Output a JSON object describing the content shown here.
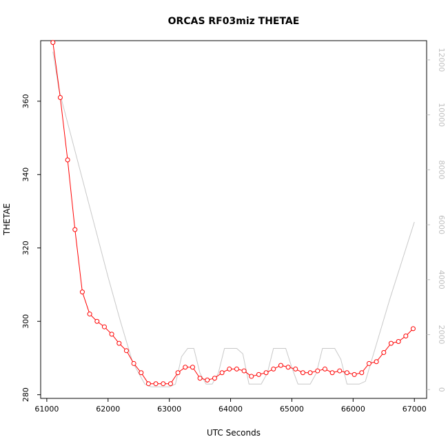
{
  "chart_data": {
    "type": "line",
    "title": "ORCAS RF03miz THETAE",
    "xlabel": "UTC Seconds",
    "ylabel": "THETAE",
    "xlim": [
      60900,
      67200
    ],
    "ylim": [
      279,
      376.5
    ],
    "y2lim": [
      -320,
      12700
    ],
    "x_ticks": [
      61000,
      62000,
      63000,
      64000,
      65000,
      66000,
      67000
    ],
    "x_tick_labels": [
      "61000",
      "62000",
      "63000",
      "64000",
      "65000",
      "66000",
      "67000"
    ],
    "y_ticks": [
      280,
      300,
      320,
      340,
      360
    ],
    "y_tick_labels": [
      "280",
      "300",
      "320",
      "340",
      "360"
    ],
    "y2_ticks": [
      0,
      2000,
      4000,
      6000,
      8000,
      10000,
      12000
    ],
    "y2_tick_labels": [
      "0",
      "2000",
      "4000",
      "6000",
      "8000",
      "10000",
      "12000"
    ],
    "grid": false,
    "colors": {
      "primary": "#ff0000",
      "secondary": "#c8c8c8",
      "axis": "#000000",
      "secondary_axis": "#bfbfbf"
    },
    "series": [
      {
        "axis": "left",
        "style": "line-with-circles",
        "x": [
          61100,
          61220,
          61340,
          61460,
          61580,
          61700,
          61820,
          61940,
          62060,
          62180,
          62300,
          62420,
          62540,
          62660,
          62780,
          62900,
          63020,
          63140,
          63260,
          63380,
          63500,
          63620,
          63740,
          63860,
          63980,
          64100,
          64220,
          64340,
          64460,
          64580,
          64700,
          64820,
          64940,
          65060,
          65180,
          65300,
          65420,
          65540,
          65660,
          65780,
          65900,
          66020,
          66140,
          66260,
          66380,
          66500,
          66620,
          66740,
          66860,
          66980
        ],
        "y": [
          376,
          361,
          344,
          325,
          308,
          302,
          300,
          298.5,
          296.5,
          294,
          292,
          288.5,
          286,
          283,
          283,
          283,
          283,
          286,
          287.5,
          287.5,
          284.5,
          284,
          284.5,
          286,
          287,
          287,
          286.5,
          285,
          285.5,
          286,
          287,
          288,
          287.5,
          287,
          286,
          286,
          286.5,
          287,
          286,
          286.5,
          286,
          285.5,
          286,
          288.5,
          289,
          291.5,
          294,
          294.5,
          296,
          298
        ]
      },
      {
        "axis": "right",
        "style": "line",
        "x": [
          61100,
          61200,
          61400,
          61600,
          61800,
          62000,
          62200,
          62400,
          62600,
          62700,
          62800,
          63000,
          63100,
          63200,
          63300,
          63400,
          63500,
          63600,
          63700,
          63800,
          63900,
          64000,
          64100,
          64200,
          64300,
          64400,
          64500,
          64600,
          64700,
          64800,
          64900,
          65000,
          65100,
          65200,
          65300,
          65400,
          65500,
          65600,
          65700,
          65800,
          65900,
          66000,
          66100,
          66200,
          66400,
          66600,
          66800,
          67000
        ],
        "y": [
          12300,
          10900,
          9200,
          7500,
          5800,
          4100,
          2500,
          1000,
          200,
          100,
          100,
          100,
          200,
          1200,
          1500,
          1500,
          600,
          200,
          200,
          600,
          1500,
          1500,
          1500,
          1300,
          200,
          200,
          200,
          600,
          1500,
          1500,
          1500,
          800,
          200,
          200,
          200,
          600,
          1500,
          1500,
          1500,
          1100,
          200,
          200,
          200,
          300,
          1800,
          3300,
          4700,
          6100
        ]
      }
    ]
  }
}
